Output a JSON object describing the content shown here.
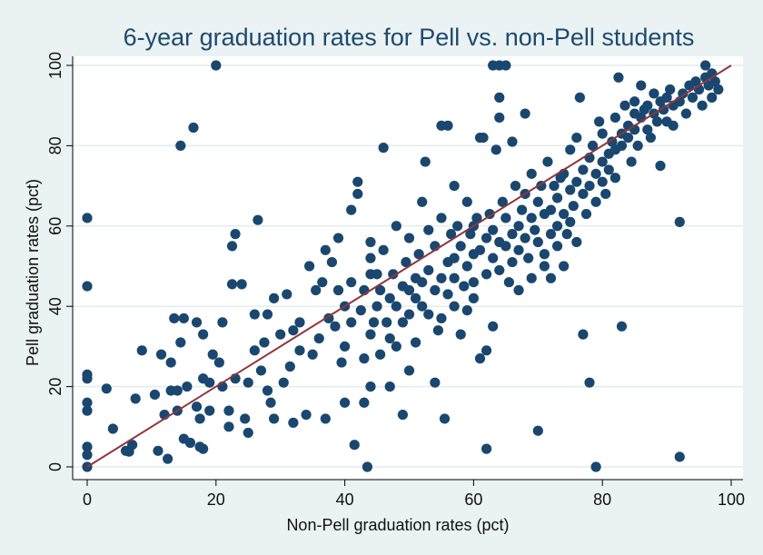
{
  "chart_data": {
    "type": "scatter",
    "title": "6-year graduation rates for Pell vs. non-Pell students",
    "xlabel": "Non-Pell graduation rates (pct)",
    "ylabel": "Pell graduation rates (pct)",
    "xlim": [
      0,
      100
    ],
    "ylim": [
      0,
      100
    ],
    "xticks": [
      0,
      20,
      40,
      60,
      80,
      100
    ],
    "yticks": [
      0,
      20,
      40,
      60,
      80,
      100
    ],
    "grid": "horizontal",
    "colors": {
      "points": "#1a476f",
      "line": "#90353b",
      "plot_bg": "#ffffff",
      "page_bg": "#eaf2f3"
    },
    "reference_line": {
      "label": "",
      "points": [
        [
          0,
          0
        ],
        [
          100,
          100
        ]
      ]
    },
    "series": [
      {
        "points": [
          [
            0,
            0
          ],
          [
            0,
            3
          ],
          [
            0,
            5
          ],
          [
            0,
            14
          ],
          [
            0,
            16
          ],
          [
            0,
            22
          ],
          [
            0,
            23
          ],
          [
            0,
            45
          ],
          [
            0,
            62
          ],
          [
            3,
            19.5
          ],
          [
            4,
            9.5
          ],
          [
            6,
            4
          ],
          [
            6.5,
            3.8
          ],
          [
            7,
            5.5
          ],
          [
            7.5,
            17
          ],
          [
            8.5,
            29
          ],
          [
            10.5,
            18
          ],
          [
            11,
            4
          ],
          [
            11.5,
            28
          ],
          [
            12,
            13
          ],
          [
            12.5,
            2
          ],
          [
            13,
            26
          ],
          [
            13,
            19
          ],
          [
            13.5,
            37
          ],
          [
            14,
            14
          ],
          [
            14,
            19
          ],
          [
            14.5,
            31
          ],
          [
            14.5,
            80
          ],
          [
            15,
            37
          ],
          [
            15,
            7
          ],
          [
            15.5,
            20
          ],
          [
            16,
            6
          ],
          [
            16.5,
            84.5
          ],
          [
            17,
            15
          ],
          [
            17,
            36
          ],
          [
            17.5,
            5
          ],
          [
            17.5,
            12
          ],
          [
            18,
            4.5
          ],
          [
            18,
            22
          ],
          [
            18,
            33
          ],
          [
            19,
            14
          ],
          [
            19,
            21
          ],
          [
            19.5,
            28
          ],
          [
            20,
            100
          ],
          [
            20.5,
            26
          ],
          [
            21,
            20
          ],
          [
            21,
            36
          ],
          [
            22,
            10
          ],
          [
            22,
            14
          ],
          [
            22.5,
            45.5
          ],
          [
            22.5,
            55
          ],
          [
            23,
            58
          ],
          [
            23,
            22
          ],
          [
            24,
            45.5
          ],
          [
            24.5,
            12
          ],
          [
            25,
            8.5
          ],
          [
            25,
            21
          ],
          [
            26,
            38
          ],
          [
            26,
            29
          ],
          [
            26.5,
            61.5
          ],
          [
            27,
            24
          ],
          [
            27.5,
            31
          ],
          [
            28,
            19
          ],
          [
            28,
            38
          ],
          [
            28.5,
            16
          ],
          [
            29,
            12
          ],
          [
            29,
            42
          ],
          [
            30,
            33
          ],
          [
            30.5,
            21
          ],
          [
            31,
            43
          ],
          [
            31.5,
            25
          ],
          [
            32,
            34
          ],
          [
            32,
            11
          ],
          [
            33,
            29
          ],
          [
            33,
            36
          ],
          [
            34,
            13
          ],
          [
            34.5,
            50
          ],
          [
            35,
            28
          ],
          [
            35.5,
            44
          ],
          [
            36,
            32
          ],
          [
            36.5,
            46
          ],
          [
            37,
            12
          ],
          [
            37,
            54
          ],
          [
            37.5,
            37
          ],
          [
            38,
            51
          ],
          [
            38.5,
            35
          ],
          [
            39,
            57
          ],
          [
            39,
            44
          ],
          [
            39.5,
            26
          ],
          [
            40,
            16
          ],
          [
            40,
            40
          ],
          [
            40,
            30
          ],
          [
            41,
            46
          ],
          [
            41,
            64
          ],
          [
            41,
            36
          ],
          [
            41.5,
            5.5
          ],
          [
            42,
            71
          ],
          [
            42,
            68
          ],
          [
            42.5,
            39
          ],
          [
            43,
            44
          ],
          [
            43,
            16
          ],
          [
            43,
            27
          ],
          [
            43.5,
            0
          ],
          [
            44,
            52
          ],
          [
            44,
            48
          ],
          [
            44,
            33
          ],
          [
            44,
            56
          ],
          [
            44,
            20
          ],
          [
            44.5,
            36
          ],
          [
            45,
            48
          ],
          [
            45,
            40
          ],
          [
            45.5,
            28
          ],
          [
            45.5,
            44
          ],
          [
            46,
            79.5
          ],
          [
            46,
            54
          ],
          [
            46.5,
            36
          ],
          [
            47,
            42
          ],
          [
            47,
            32
          ],
          [
            47,
            20
          ],
          [
            47.5,
            48
          ],
          [
            48,
            30
          ],
          [
            48,
            40
          ],
          [
            48,
            60
          ],
          [
            49,
            13
          ],
          [
            49,
            45
          ],
          [
            49,
            36
          ],
          [
            49.5,
            51
          ],
          [
            50,
            44
          ],
          [
            50,
            38
          ],
          [
            50,
            57
          ],
          [
            50,
            24
          ],
          [
            51,
            47
          ],
          [
            51,
            42
          ],
          [
            51,
            31
          ],
          [
            51.5,
            53
          ],
          [
            52,
            40
          ],
          [
            52,
            66
          ],
          [
            52,
            46
          ],
          [
            52.5,
            76
          ],
          [
            53,
            49
          ],
          [
            53,
            38
          ],
          [
            53,
            59
          ],
          [
            54,
            44
          ],
          [
            54,
            55
          ],
          [
            54,
            21
          ],
          [
            54.5,
            34
          ],
          [
            55,
            47
          ],
          [
            55,
            62
          ],
          [
            55,
            37
          ],
          [
            55,
            85
          ],
          [
            55.5,
            12
          ],
          [
            56,
            51
          ],
          [
            56,
            43
          ],
          [
            56,
            85
          ],
          [
            56.5,
            58
          ],
          [
            57,
            40
          ],
          [
            57,
            70
          ],
          [
            57,
            52
          ],
          [
            57,
            47
          ],
          [
            57.5,
            60
          ],
          [
            58,
            33
          ],
          [
            58,
            55
          ],
          [
            58.5,
            45
          ],
          [
            59,
            50
          ],
          [
            59,
            66
          ],
          [
            59,
            39
          ],
          [
            59.5,
            58
          ],
          [
            60,
            53
          ],
          [
            60,
            46
          ],
          [
            60,
            60
          ],
          [
            60,
            42
          ],
          [
            60.5,
            62
          ],
          [
            61,
            82
          ],
          [
            61,
            54
          ],
          [
            61,
            27
          ],
          [
            61.5,
            82
          ],
          [
            62,
            57
          ],
          [
            62,
            4.5
          ],
          [
            62,
            29
          ],
          [
            62,
            48
          ],
          [
            62.5,
            63
          ],
          [
            63,
            52
          ],
          [
            63,
            59
          ],
          [
            63,
            35
          ],
          [
            63,
            100
          ],
          [
            63.5,
            79
          ],
          [
            64,
            56
          ],
          [
            64,
            49
          ],
          [
            64,
            100
          ],
          [
            64,
            87
          ],
          [
            64,
            92
          ],
          [
            64.5,
            66
          ],
          [
            65,
            55
          ],
          [
            65,
            62
          ],
          [
            65,
            100
          ],
          [
            65.5,
            46
          ],
          [
            66,
            58
          ],
          [
            66,
            81
          ],
          [
            66,
            51
          ],
          [
            66.5,
            70
          ],
          [
            67,
            60
          ],
          [
            67,
            54
          ],
          [
            67,
            44
          ],
          [
            67.5,
            64
          ],
          [
            68,
            57
          ],
          [
            68,
            68
          ],
          [
            68,
            88
          ],
          [
            68.5,
            52
          ],
          [
            69,
            62
          ],
          [
            69,
            47
          ],
          [
            69,
            73
          ],
          [
            69.5,
            59
          ],
          [
            70,
            66
          ],
          [
            70,
            9
          ],
          [
            70,
            56
          ],
          [
            70.5,
            70
          ],
          [
            71,
            63
          ],
          [
            71,
            53
          ],
          [
            71,
            50
          ],
          [
            71.5,
            76
          ],
          [
            72,
            64
          ],
          [
            72,
            58
          ],
          [
            72,
            47
          ],
          [
            72.5,
            70
          ],
          [
            73,
            67
          ],
          [
            73,
            55
          ],
          [
            73,
            60
          ],
          [
            73.5,
            72
          ],
          [
            74,
            63
          ],
          [
            74,
            73
          ],
          [
            74,
            50
          ],
          [
            74.5,
            58
          ],
          [
            75,
            69
          ],
          [
            75,
            61
          ],
          [
            75,
            79
          ],
          [
            75.5,
            65
          ],
          [
            76,
            82
          ],
          [
            76,
            71
          ],
          [
            76,
            56
          ],
          [
            76.5,
            92
          ],
          [
            77,
            68
          ],
          [
            77,
            74
          ],
          [
            77,
            33
          ],
          [
            77.5,
            63
          ],
          [
            78,
            77
          ],
          [
            78,
            70
          ],
          [
            78,
            21
          ],
          [
            78.5,
            80
          ],
          [
            79,
            73
          ],
          [
            79,
            66
          ],
          [
            79,
            0
          ],
          [
            79.5,
            86
          ],
          [
            80,
            76
          ],
          [
            80,
            71
          ],
          [
            80,
            83
          ],
          [
            80.5,
            68
          ],
          [
            81,
            78
          ],
          [
            81,
            74
          ],
          [
            81.5,
            81
          ],
          [
            82,
            79
          ],
          [
            82,
            87
          ],
          [
            82,
            72
          ],
          [
            82.5,
            97
          ],
          [
            83,
            35
          ],
          [
            83,
            83
          ],
          [
            83,
            80
          ],
          [
            83.5,
            90
          ],
          [
            84,
            82
          ],
          [
            84,
            85
          ],
          [
            84.5,
            76
          ],
          [
            85,
            88
          ],
          [
            85,
            84
          ],
          [
            85,
            91
          ],
          [
            85.5,
            80
          ],
          [
            86,
            87
          ],
          [
            86,
            95
          ],
          [
            86.5,
            89
          ],
          [
            87,
            84
          ],
          [
            87,
            90
          ],
          [
            87.5,
            82
          ],
          [
            88,
            88
          ],
          [
            88,
            93
          ],
          [
            88.5,
            86
          ],
          [
            89,
            91
          ],
          [
            89,
            75
          ],
          [
            89.5,
            89
          ],
          [
            90,
            92
          ],
          [
            90,
            86
          ],
          [
            90.5,
            94
          ],
          [
            91,
            90
          ],
          [
            91,
            85
          ],
          [
            92,
            91
          ],
          [
            92,
            61
          ],
          [
            92,
            2.5
          ],
          [
            92.5,
            93
          ],
          [
            93,
            88
          ],
          [
            93.5,
            95
          ],
          [
            94,
            92
          ],
          [
            94.5,
            96
          ],
          [
            95,
            94
          ],
          [
            95.5,
            90
          ],
          [
            96,
            97
          ],
          [
            96,
            100
          ],
          [
            96.5,
            95
          ],
          [
            97,
            92
          ],
          [
            97,
            98
          ],
          [
            97.5,
            96
          ],
          [
            98,
            94
          ]
        ]
      }
    ]
  }
}
